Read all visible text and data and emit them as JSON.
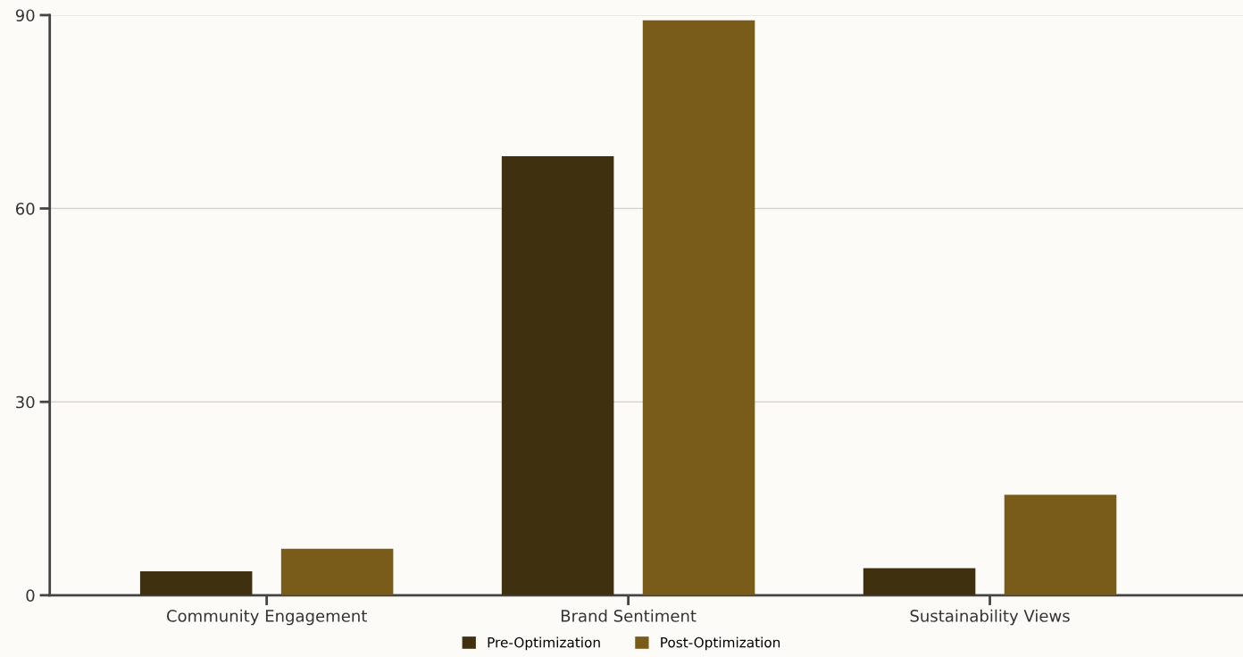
{
  "chart_data": {
    "type": "bar",
    "categories": [
      "Community Engagement",
      "Brand Sentiment",
      "Sustainability Views"
    ],
    "series": [
      {
        "name": "Pre-Optimization",
        "color": "#3f3110",
        "values": [
          3.7,
          68.1,
          4.2
        ]
      },
      {
        "name": "Post-Optimization",
        "color": "#7a5c1a",
        "values": [
          7.2,
          89.2,
          15.6
        ]
      }
    ],
    "ylim": [
      0,
      90
    ],
    "yticks": [
      0,
      30,
      60,
      90
    ],
    "grid": "y",
    "legend": "bottom"
  }
}
